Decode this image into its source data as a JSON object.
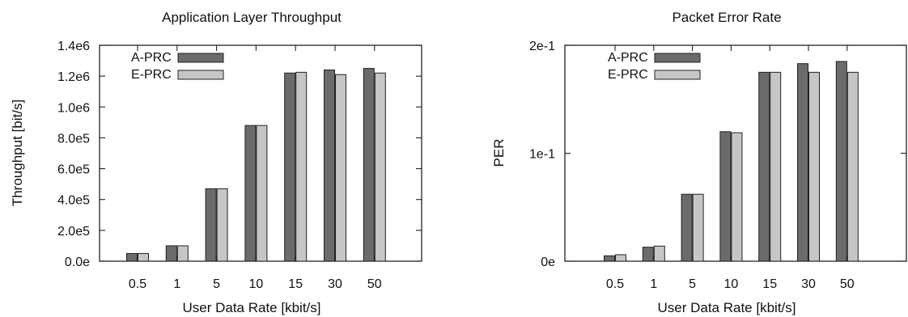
{
  "chart_data": [
    {
      "type": "bar",
      "title": "Application Layer Throughput",
      "xlabel": "User Data Rate [kbit/s]",
      "ylabel": "Throughput [bit/s]",
      "categories": [
        "0.5",
        "1",
        "5",
        "10",
        "15",
        "30",
        "50"
      ],
      "ylim": [
        0,
        1400000
      ],
      "yticks": [
        {
          "value": 0,
          "label": "0.0e"
        },
        {
          "value": 200000,
          "label": "2.0e5"
        },
        {
          "value": 400000,
          "label": "4.0e5"
        },
        {
          "value": 600000,
          "label": "6.0e5"
        },
        {
          "value": 800000,
          "label": "8.0e5"
        },
        {
          "value": 1000000,
          "label": "1.0e6"
        },
        {
          "value": 1200000,
          "label": "1.2e6"
        },
        {
          "value": 1400000,
          "label": "1.4e6"
        }
      ],
      "legend_position": "top-left",
      "grid": false,
      "series": [
        {
          "name": "A-PRC",
          "color": "#6b6b6b",
          "values": [
            50000,
            100000,
            470000,
            880000,
            1220000,
            1240000,
            1250000
          ]
        },
        {
          "name": "E-PRC",
          "color": "#c6c6c6",
          "values": [
            50000,
            100000,
            470000,
            880000,
            1225000,
            1210000,
            1220000
          ]
        }
      ]
    },
    {
      "type": "bar",
      "title": "Packet Error Rate",
      "xlabel": "User Data Rate [kbit/s]",
      "ylabel": "PER",
      "categories": [
        "0.5",
        "1",
        "5",
        "10",
        "15",
        "30",
        "50"
      ],
      "ylim": [
        0,
        0.2
      ],
      "yticks": [
        {
          "value": 0,
          "label": "0e"
        },
        {
          "value": 0.1,
          "label": "1e-1"
        },
        {
          "value": 0.2,
          "label": "2e-1"
        }
      ],
      "legend_position": "top-left",
      "grid": false,
      "series": [
        {
          "name": "A-PRC",
          "color": "#6b6b6b",
          "values": [
            0.005,
            0.013,
            0.062,
            0.12,
            0.175,
            0.183,
            0.185
          ]
        },
        {
          "name": "E-PRC",
          "color": "#c6c6c6",
          "values": [
            0.006,
            0.014,
            0.062,
            0.119,
            0.175,
            0.175,
            0.175
          ]
        }
      ]
    }
  ]
}
